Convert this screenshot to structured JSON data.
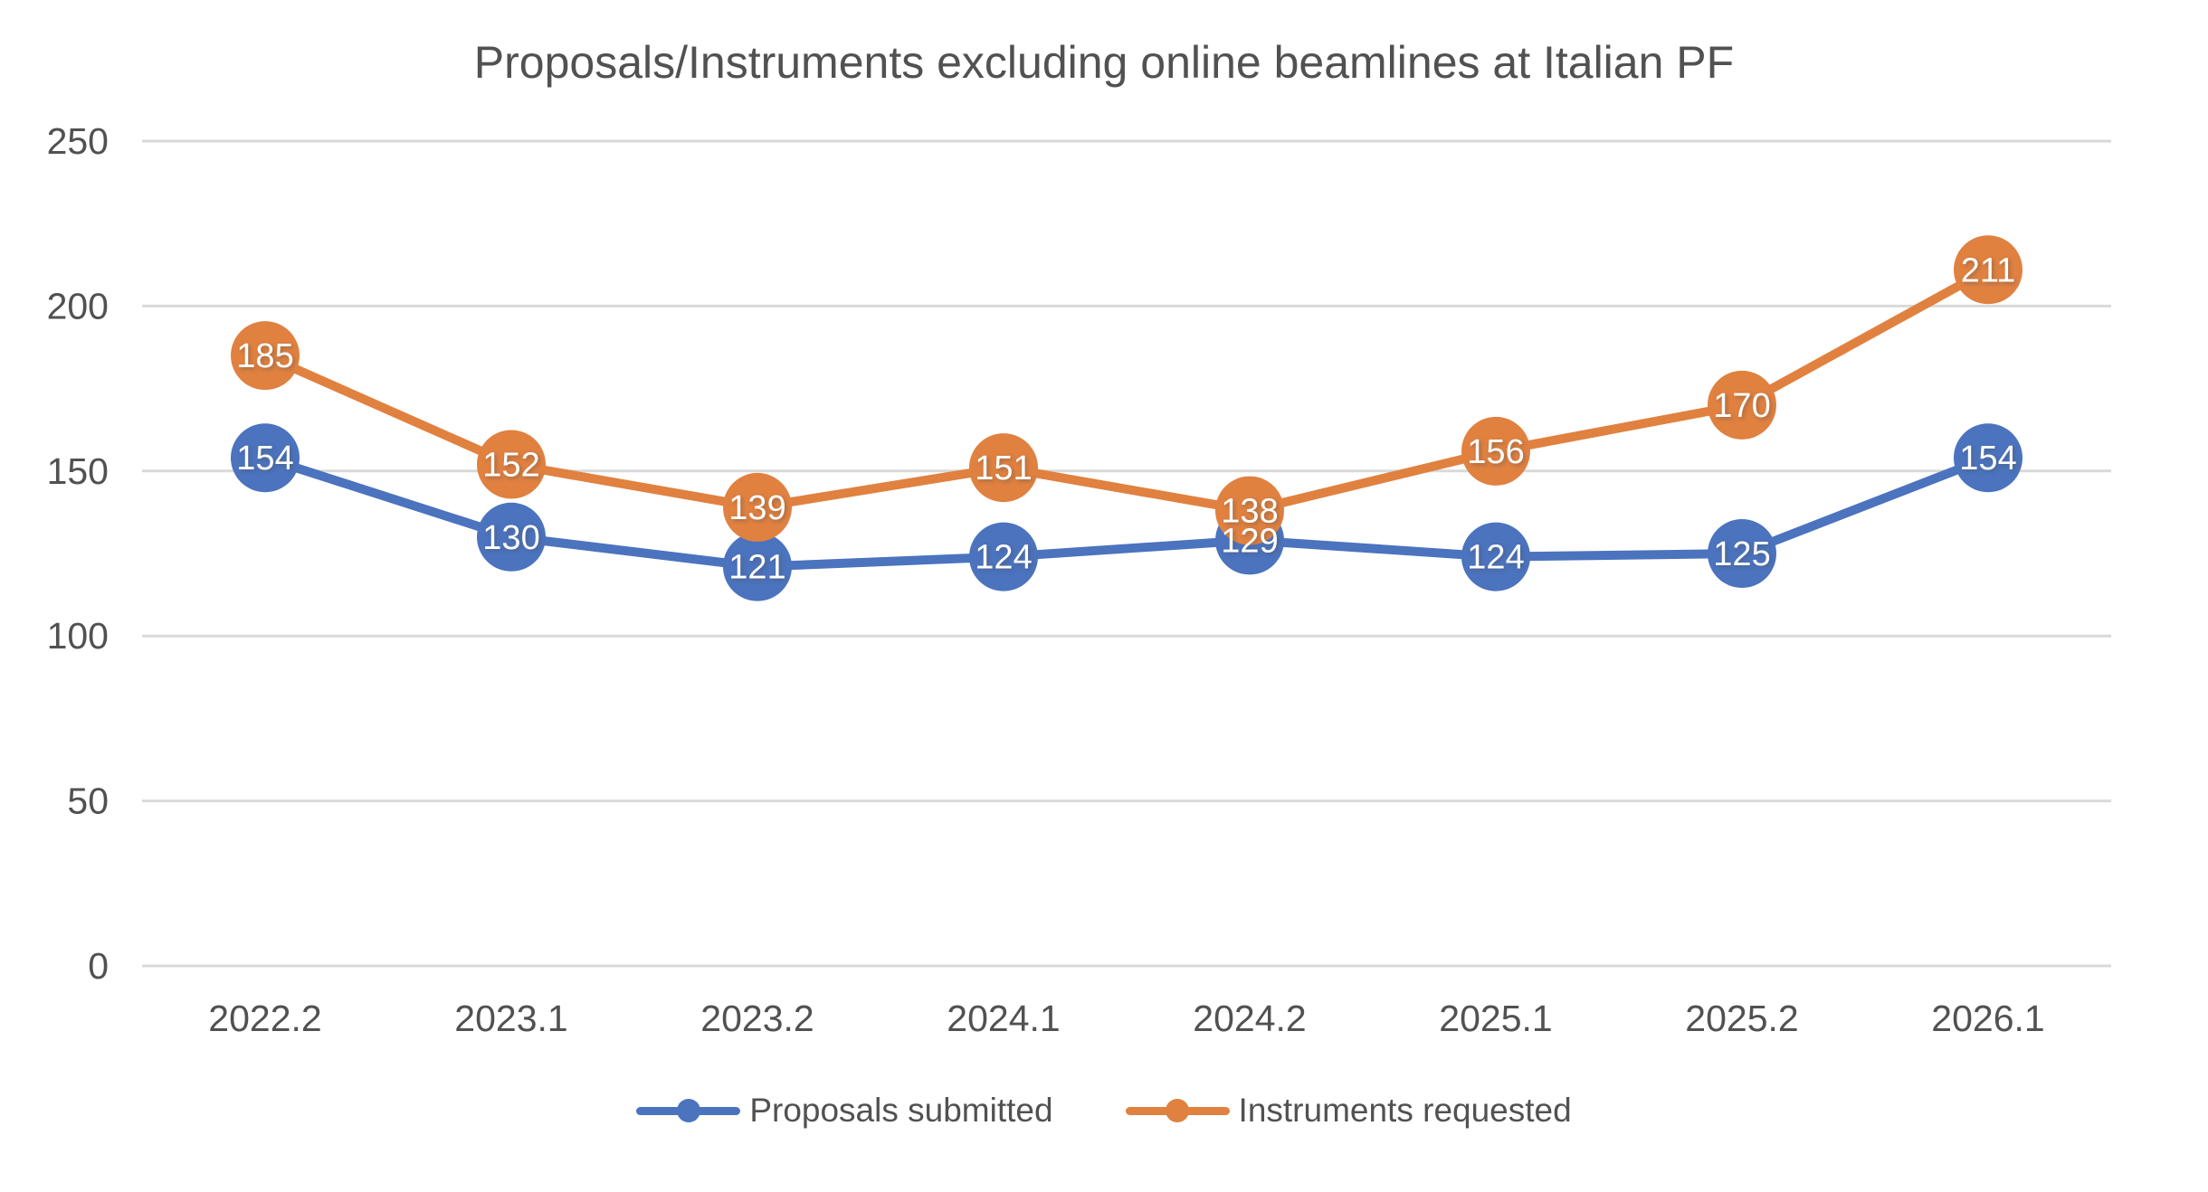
{
  "chart_data": {
    "type": "line",
    "title": "Proposals/Instruments excluding online beamlines at Italian PF",
    "categories": [
      "2022.2",
      "2023.1",
      "2023.2",
      "2024.1",
      "2024.2",
      "2025.1",
      "2025.2",
      "2026.1"
    ],
    "series": [
      {
        "name": "Proposals submitted",
        "color": "#4B73BE",
        "values": [
          154,
          130,
          121,
          124,
          129,
          124,
          125,
          154
        ]
      },
      {
        "name": "Instruments requested",
        "color": "#E08140",
        "values": [
          185,
          152,
          139,
          151,
          138,
          156,
          170,
          211
        ]
      }
    ],
    "y_ticks": [
      0,
      50,
      100,
      150,
      200,
      250
    ],
    "ylim": [
      0,
      250
    ],
    "xlabel": "",
    "ylabel": "",
    "grid": "horizontal",
    "grid_color": "#D9D9D9",
    "text_color": "#515151",
    "data_label_color": "#FFFFFF",
    "data_labels": "center",
    "legend_position": "bottom",
    "marker_style": "circle"
  }
}
